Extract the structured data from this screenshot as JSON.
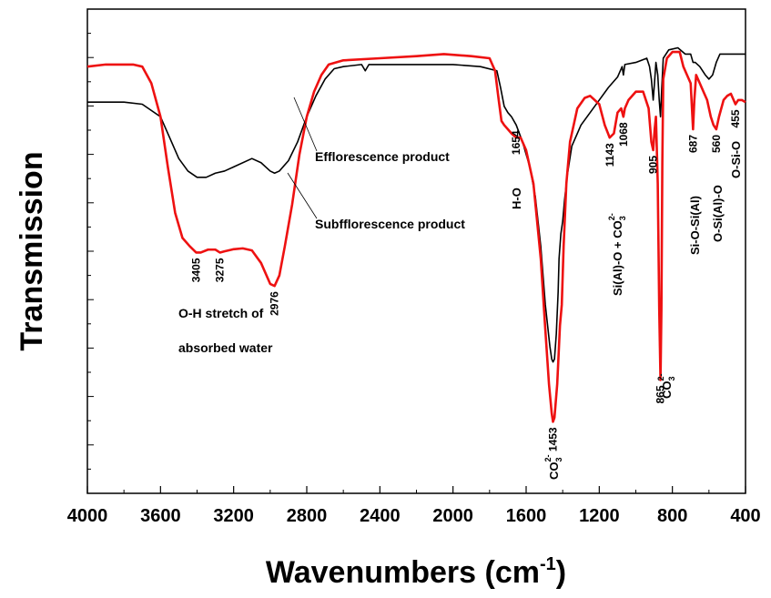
{
  "chart_data": {
    "type": "line",
    "xlabel": "Wavenumbers (cm",
    "xlabel_sup": "-1",
    "xlabel_end": ")",
    "ylabel": "Transmission",
    "xlim": [
      4000,
      400
    ],
    "x_reversed": true,
    "xticks": [
      "4000",
      "3600",
      "3200",
      "2800",
      "2400",
      "2000",
      "1600",
      "1200",
      "800",
      "400"
    ],
    "xtick_values": [
      4000,
      3600,
      3200,
      2800,
      2400,
      2000,
      1600,
      1200,
      800,
      400
    ],
    "ylim": [
      0,
      100
    ],
    "y_tick_labels_shown": false,
    "series": [
      {
        "name": "Efflorescence product",
        "color": "#000000",
        "points": [
          [
            4000,
            89.5
          ],
          [
            3800,
            89.5
          ],
          [
            3700,
            89
          ],
          [
            3600,
            86
          ],
          [
            3550,
            81
          ],
          [
            3500,
            76
          ],
          [
            3450,
            73
          ],
          [
            3400,
            71.5
          ],
          [
            3350,
            71.5
          ],
          [
            3300,
            72.5
          ],
          [
            3250,
            73
          ],
          [
            3200,
            74
          ],
          [
            3100,
            76
          ],
          [
            3050,
            75
          ],
          [
            3000,
            73
          ],
          [
            2976,
            72.5
          ],
          [
            2950,
            73
          ],
          [
            2900,
            75.5
          ],
          [
            2850,
            80
          ],
          [
            2800,
            86
          ],
          [
            2750,
            91
          ],
          [
            2700,
            95
          ],
          [
            2650,
            97.5
          ],
          [
            2600,
            98
          ],
          [
            2500,
            98.5
          ],
          [
            2480,
            97
          ],
          [
            2460,
            98.5
          ],
          [
            2400,
            98.5
          ],
          [
            2000,
            98.5
          ],
          [
            1850,
            98
          ],
          [
            1760,
            97
          ],
          [
            1740,
            93
          ],
          [
            1720,
            88.5
          ],
          [
            1700,
            87
          ],
          [
            1680,
            86
          ],
          [
            1654,
            84
          ],
          [
            1620,
            80
          ],
          [
            1580,
            74
          ],
          [
            1550,
            67
          ],
          [
            1520,
            55
          ],
          [
            1495,
            41
          ],
          [
            1470,
            31
          ],
          [
            1460,
            28
          ],
          [
            1453,
            27.3
          ],
          [
            1445,
            28
          ],
          [
            1435,
            34
          ],
          [
            1425,
            44
          ],
          [
            1420,
            52
          ],
          [
            1410,
            58
          ],
          [
            1400,
            61
          ],
          [
            1390,
            66
          ],
          [
            1375,
            72
          ],
          [
            1350,
            79
          ],
          [
            1300,
            84
          ],
          [
            1250,
            87
          ],
          [
            1200,
            90
          ],
          [
            1150,
            93
          ],
          [
            1100,
            95.5
          ],
          [
            1075,
            98
          ],
          [
            1068,
            96
          ],
          [
            1060,
            98.5
          ],
          [
            1000,
            99
          ],
          [
            940,
            100
          ],
          [
            925,
            98
          ],
          [
            915,
            95
          ],
          [
            905,
            90
          ],
          [
            898,
            94
          ],
          [
            890,
            99
          ],
          [
            880,
            96
          ],
          [
            872,
            90
          ],
          [
            865,
            86
          ],
          [
            858,
            93
          ],
          [
            850,
            100
          ],
          [
            820,
            102
          ],
          [
            770,
            102.5
          ],
          [
            730,
            101
          ],
          [
            700,
            101
          ],
          [
            687,
            99
          ],
          [
            675,
            99
          ],
          [
            650,
            98
          ],
          [
            620,
            96
          ],
          [
            600,
            95
          ],
          [
            580,
            96
          ],
          [
            560,
            99
          ],
          [
            540,
            101
          ],
          [
            500,
            101
          ],
          [
            455,
            101
          ],
          [
            420,
            101
          ],
          [
            400,
            101
          ]
        ]
      },
      {
        "name": "Subfflorescence product",
        "color": "#ee1111",
        "points": [
          [
            4000,
            98
          ],
          [
            3900,
            98.5
          ],
          [
            3800,
            98.5
          ],
          [
            3750,
            98.5
          ],
          [
            3700,
            98
          ],
          [
            3650,
            94
          ],
          [
            3600,
            86
          ],
          [
            3560,
            74
          ],
          [
            3520,
            63
          ],
          [
            3480,
            57
          ],
          [
            3440,
            55
          ],
          [
            3405,
            53.5
          ],
          [
            3380,
            53.5
          ],
          [
            3340,
            54.2
          ],
          [
            3300,
            54.2
          ],
          [
            3275,
            53.5
          ],
          [
            3250,
            53.8
          ],
          [
            3200,
            54.3
          ],
          [
            3150,
            54.5
          ],
          [
            3100,
            54
          ],
          [
            3050,
            51
          ],
          [
            3000,
            46
          ],
          [
            2976,
            45.5
          ],
          [
            2950,
            48
          ],
          [
            2920,
            55
          ],
          [
            2880,
            65
          ],
          [
            2840,
            77
          ],
          [
            2800,
            86
          ],
          [
            2760,
            92
          ],
          [
            2720,
            96
          ],
          [
            2680,
            98.5
          ],
          [
            2600,
            99.5
          ],
          [
            2400,
            100
          ],
          [
            2200,
            100.5
          ],
          [
            2050,
            101
          ],
          [
            1900,
            100.5
          ],
          [
            1800,
            100
          ],
          [
            1770,
            97
          ],
          [
            1750,
            90
          ],
          [
            1735,
            85
          ],
          [
            1720,
            84
          ],
          [
            1700,
            83
          ],
          [
            1680,
            82
          ],
          [
            1654,
            81
          ],
          [
            1630,
            81
          ],
          [
            1600,
            78
          ],
          [
            1560,
            70
          ],
          [
            1520,
            52
          ],
          [
            1495,
            35
          ],
          [
            1475,
            22
          ],
          [
            1460,
            15
          ],
          [
            1453,
            13
          ],
          [
            1445,
            14
          ],
          [
            1430,
            22
          ],
          [
            1415,
            36
          ],
          [
            1405,
            41
          ],
          [
            1395,
            55
          ],
          [
            1380,
            70
          ],
          [
            1360,
            80
          ],
          [
            1320,
            88
          ],
          [
            1280,
            90.5
          ],
          [
            1250,
            91
          ],
          [
            1200,
            89
          ],
          [
            1170,
            84
          ],
          [
            1143,
            81
          ],
          [
            1120,
            82
          ],
          [
            1100,
            87
          ],
          [
            1080,
            88
          ],
          [
            1068,
            86
          ],
          [
            1060,
            88
          ],
          [
            1040,
            90
          ],
          [
            1000,
            92
          ],
          [
            960,
            92
          ],
          [
            930,
            88
          ],
          [
            915,
            80
          ],
          [
            905,
            78
          ],
          [
            897,
            83
          ],
          [
            890,
            86
          ],
          [
            880,
            70
          ],
          [
            872,
            40
          ],
          [
            865,
            23
          ],
          [
            860,
            40
          ],
          [
            855,
            75
          ],
          [
            850,
            95
          ],
          [
            830,
            100
          ],
          [
            800,
            101.5
          ],
          [
            760,
            101.5
          ],
          [
            740,
            98
          ],
          [
            720,
            96
          ],
          [
            700,
            94
          ],
          [
            687,
            83
          ],
          [
            680,
            90
          ],
          [
            670,
            96
          ],
          [
            650,
            94
          ],
          [
            630,
            92
          ],
          [
            610,
            90
          ],
          [
            590,
            86
          ],
          [
            575,
            84
          ],
          [
            560,
            83
          ],
          [
            545,
            86
          ],
          [
            520,
            90
          ],
          [
            500,
            91
          ],
          [
            480,
            91.5
          ],
          [
            465,
            90
          ],
          [
            455,
            89
          ],
          [
            440,
            90
          ],
          [
            420,
            90
          ],
          [
            400,
            89.5
          ]
        ]
      }
    ],
    "annotations": [
      {
        "kind": "rot",
        "lines": [
          "3405"
        ],
        "x": 3405,
        "y": 53.5
      },
      {
        "kind": "rot",
        "lines": [
          "3275"
        ],
        "x": 3275,
        "y": 53.5
      },
      {
        "kind": "rot",
        "lines": [
          "2976"
        ],
        "x": 2976,
        "y": 45.5
      },
      {
        "kind": "rot",
        "lines": [
          "1654"
        ],
        "x": 1654,
        "y": 84
      },
      {
        "kind": "rot",
        "lines": [
          "1453"
        ],
        "x": 1453,
        "y": 13
      },
      {
        "kind": "rot",
        "lines": [
          "1143"
        ],
        "x": 1143,
        "y": 81
      },
      {
        "kind": "rot",
        "lines": [
          "1068"
        ],
        "x": 1068,
        "y": 86
      },
      {
        "kind": "rot",
        "lines": [
          "905"
        ],
        "x": 905,
        "y": 78
      },
      {
        "kind": "rot",
        "lines": [
          "865"
        ],
        "x": 865,
        "y": 23
      },
      {
        "kind": "rot",
        "lines": [
          "687"
        ],
        "x": 687,
        "y": 83
      },
      {
        "kind": "rot",
        "lines": [
          "560"
        ],
        "x": 560,
        "y": 83
      },
      {
        "kind": "rot",
        "lines": [
          "455"
        ],
        "x": 455,
        "y": 89
      }
    ],
    "label_texts": {
      "efflorescence": "Efflorescence product",
      "subfflorescence": "Subfflorescence product",
      "oh_line1": "O-H stretch of",
      "oh_line2": "absorbed water",
      "h_o": "H-O",
      "co3": "CO",
      "co3_sub": "3",
      "co3_sup": "2-",
      "si_al_o": "Si(Al)-O + CO",
      "si_o_si_al": "Si-O-Si(Al)",
      "o_si_al_o": "O-Si(Al)-O",
      "o_si_o": "O-Si-O"
    }
  }
}
